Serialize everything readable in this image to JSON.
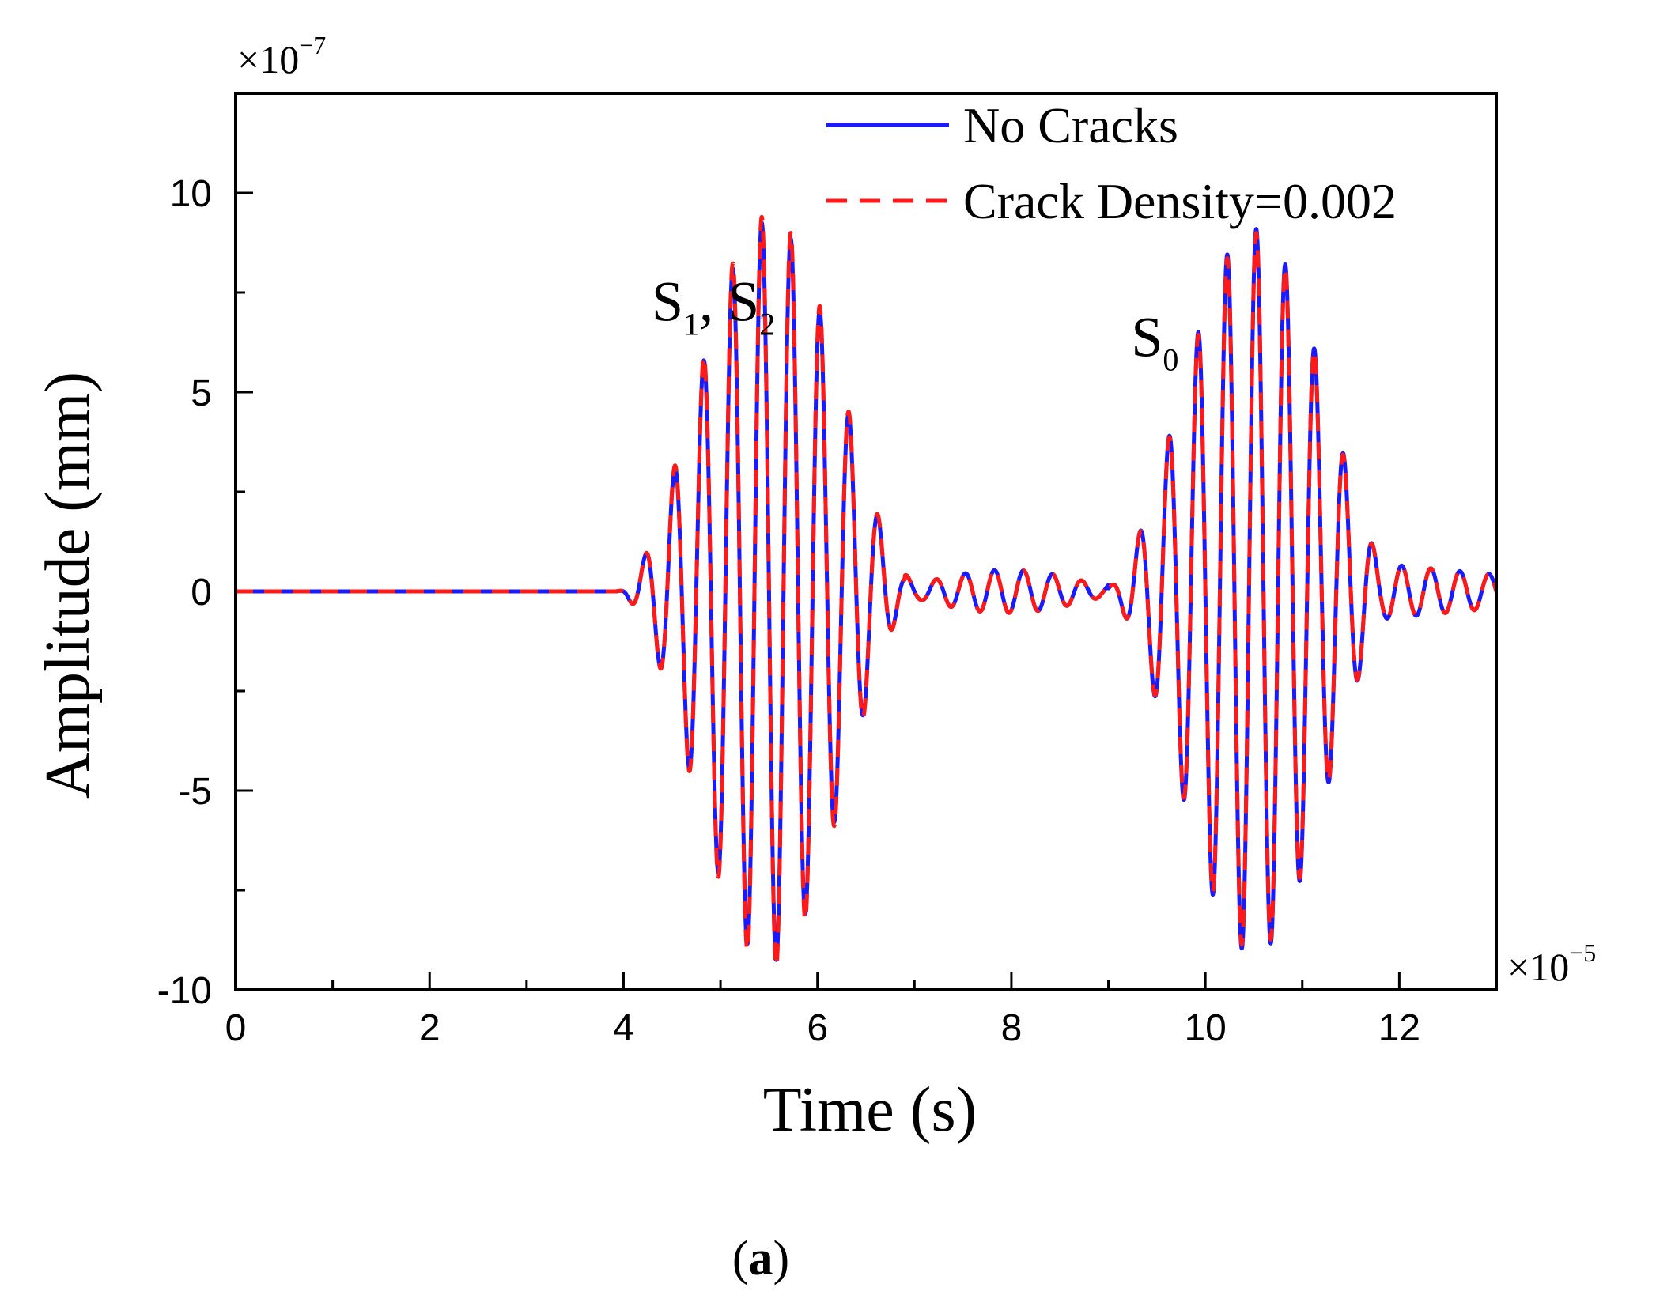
{
  "chart_data": {
    "type": "line",
    "xlabel": "Time (s)",
    "ylabel": "Amplitude (mm)",
    "x_multiplier": {
      "base": "×10",
      "exp": "−5"
    },
    "y_multiplier": {
      "base": "×10",
      "exp": "−7"
    },
    "xlim": [
      0,
      13
    ],
    "ylim": [
      -10,
      12.5
    ],
    "x_ticks": [
      0,
      2,
      4,
      6,
      8,
      10,
      12
    ],
    "x_tick_labels": [
      "0",
      "2",
      "4",
      "6",
      "8",
      "10",
      "12"
    ],
    "x_minor_ticks": [
      1,
      3,
      5,
      7,
      9,
      11
    ],
    "y_ticks": [
      -10,
      -5,
      0,
      5,
      10
    ],
    "y_tick_labels": [
      "-10",
      "-5",
      "0",
      "5",
      "10"
    ],
    "y_minor_ticks": [
      -7.5,
      -2.5,
      2.5,
      7.5
    ],
    "grid": false,
    "legend_position": "top-right",
    "series": [
      {
        "name": "No Cracks",
        "color": "#1a1aff",
        "style": "solid",
        "carrier_period": 0.3,
        "packets": [
          {
            "center": 5.5,
            "half_width": 1.6,
            "peak": 9.3
          },
          {
            "center": 10.5,
            "half_width": 1.6,
            "peak": 9.1
          }
        ],
        "ripple": {
          "start": 6.9,
          "end": 9.0,
          "amplitude": 0.55
        },
        "tail": {
          "start": 11.8,
          "end": 13,
          "amplitude": 0.7
        },
        "sampled_points": [
          {
            "x": 0,
            "y": 0
          },
          {
            "x": 3.9,
            "y": 0
          },
          {
            "x": 4.35,
            "y": 1.3
          },
          {
            "x": 4.6,
            "y": -3.0
          },
          {
            "x": 5.0,
            "y": -6.5
          },
          {
            "x": 5.15,
            "y": 8.0
          },
          {
            "x": 5.3,
            "y": -8.8
          },
          {
            "x": 5.55,
            "y": 9.3
          },
          {
            "x": 5.7,
            "y": -9.5
          },
          {
            "x": 6.0,
            "y": 8.0
          },
          {
            "x": 6.3,
            "y": -7.0
          },
          {
            "x": 6.5,
            "y": 3.7
          },
          {
            "x": 6.75,
            "y": 2.3
          },
          {
            "x": 7.0,
            "y": 0.9
          },
          {
            "x": 8.0,
            "y": 0.4
          },
          {
            "x": 9.0,
            "y": 1.6
          },
          {
            "x": 9.6,
            "y": -4.9
          },
          {
            "x": 10.0,
            "y": 7.3
          },
          {
            "x": 10.5,
            "y": -9.1
          },
          {
            "x": 10.6,
            "y": 9.0
          },
          {
            "x": 11.1,
            "y": -7.0
          },
          {
            "x": 11.4,
            "y": 3.9
          },
          {
            "x": 11.7,
            "y": -3.0
          },
          {
            "x": 12.5,
            "y": 0.8
          },
          {
            "x": 13,
            "y": -0.3
          }
        ]
      },
      {
        "name": "Crack Density=0.002",
        "color": "#ff1a1a",
        "style": "dashed",
        "carrier_period": 0.3,
        "packets": [
          {
            "center": 5.5,
            "half_width": 1.6,
            "peak": 9.45
          },
          {
            "center": 10.5,
            "half_width": 1.6,
            "peak": 9.0
          }
        ],
        "ripple": {
          "start": 6.9,
          "end": 9.0,
          "amplitude": 0.55
        },
        "tail": {
          "start": 11.8,
          "end": 13,
          "amplitude": 0.7
        },
        "sampled_points": [
          {
            "x": 0,
            "y": 0
          },
          {
            "x": 3.9,
            "y": 0
          },
          {
            "x": 4.35,
            "y": 1.3
          },
          {
            "x": 4.6,
            "y": -3.1
          },
          {
            "x": 5.0,
            "y": -6.6
          },
          {
            "x": 5.15,
            "y": 8.1
          },
          {
            "x": 5.3,
            "y": -8.9
          },
          {
            "x": 5.55,
            "y": 9.4
          },
          {
            "x": 5.7,
            "y": -9.7
          },
          {
            "x": 6.0,
            "y": 8.1
          },
          {
            "x": 6.3,
            "y": -7.1
          },
          {
            "x": 6.5,
            "y": 3.7
          },
          {
            "x": 6.75,
            "y": 2.3
          },
          {
            "x": 7.0,
            "y": 0.9
          },
          {
            "x": 8.0,
            "y": 0.4
          },
          {
            "x": 9.0,
            "y": 1.6
          },
          {
            "x": 9.6,
            "y": -4.9
          },
          {
            "x": 10.0,
            "y": 7.2
          },
          {
            "x": 10.5,
            "y": -9.0
          },
          {
            "x": 10.6,
            "y": 8.9
          },
          {
            "x": 11.1,
            "y": -7.0
          },
          {
            "x": 11.4,
            "y": 3.9
          },
          {
            "x": 11.7,
            "y": -3.0
          },
          {
            "x": 12.5,
            "y": 0.8
          },
          {
            "x": 13,
            "y": -0.3
          }
        ]
      }
    ],
    "annotations": [
      {
        "id": "s1s2",
        "parts": [
          "S",
          "1",
          ", S",
          "2"
        ],
        "x": 4.6,
        "y": 6.8
      },
      {
        "id": "s0",
        "parts": [
          "S",
          "0"
        ],
        "x": 9.3,
        "y": 5.9
      }
    ]
  },
  "caption": {
    "open": "(",
    "letter": "a",
    "close": ")"
  }
}
